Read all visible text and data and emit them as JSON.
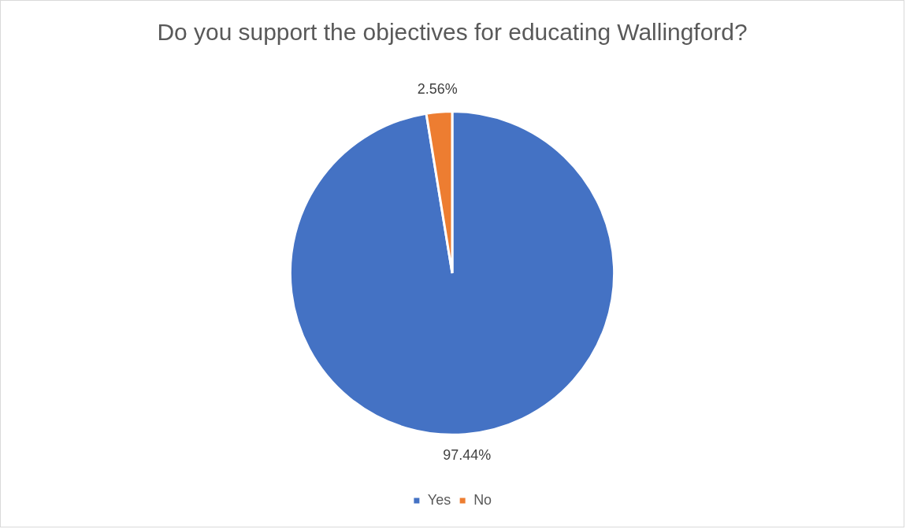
{
  "chart_data": {
    "type": "pie",
    "title": "Do you support the objectives for educating Wallingford?",
    "categories": [
      "Yes",
      "No"
    ],
    "values": [
      97.44,
      2.56
    ],
    "colors": [
      "#4472c4",
      "#ed7d31"
    ],
    "value_labels": [
      "97.44%",
      "2.56%"
    ],
    "legend": "bottom"
  }
}
